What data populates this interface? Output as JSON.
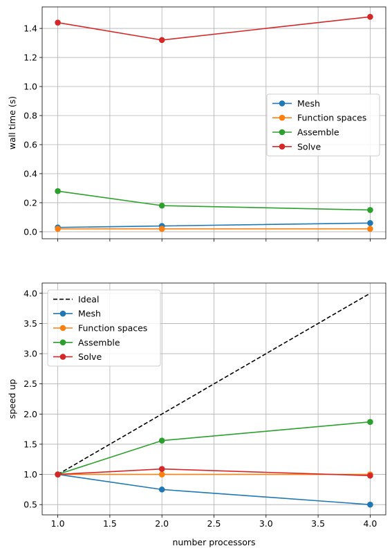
{
  "chart_data": [
    {
      "type": "line",
      "ylabel": "wall time (s)",
      "xlabel": "",
      "x": [
        1,
        2,
        4
      ],
      "xlim": [
        0.85,
        4.15
      ],
      "ylim": [
        -0.048,
        1.548
      ],
      "xticks": [
        1.0,
        1.5,
        2.0,
        2.5,
        3.0,
        3.5,
        4.0
      ],
      "yticks": [
        0.0,
        0.2,
        0.4,
        0.6,
        0.8,
        1.0,
        1.2,
        1.4
      ],
      "ytick_labels": [
        "0.0",
        "0.2",
        "0.4",
        "0.6",
        "0.8",
        "1.0",
        "1.2",
        "1.4"
      ],
      "show_xtick_labels": false,
      "grid": true,
      "legend_position": "center-right",
      "series": [
        {
          "name": "Mesh",
          "color": "#1f77b4",
          "dashed": false,
          "marker": true,
          "values": [
            0.03,
            0.04,
            0.06
          ]
        },
        {
          "name": "Function spaces",
          "color": "#ff7f0e",
          "dashed": false,
          "marker": true,
          "values": [
            0.02,
            0.02,
            0.02
          ]
        },
        {
          "name": "Assemble",
          "color": "#2ca02c",
          "dashed": false,
          "marker": true,
          "values": [
            0.28,
            0.18,
            0.15
          ]
        },
        {
          "name": "Solve",
          "color": "#d62728",
          "dashed": false,
          "marker": true,
          "values": [
            1.44,
            1.32,
            1.48
          ]
        }
      ]
    },
    {
      "type": "line",
      "ylabel": "speed up",
      "xlabel": "number processors",
      "x": [
        1,
        2,
        4
      ],
      "xlim": [
        0.85,
        4.15
      ],
      "ylim": [
        0.33,
        4.17
      ],
      "xticks": [
        1.0,
        1.5,
        2.0,
        2.5,
        3.0,
        3.5,
        4.0
      ],
      "xtick_labels": [
        "1.0",
        "1.5",
        "2.0",
        "2.5",
        "3.0",
        "3.5",
        "4.0"
      ],
      "yticks": [
        0.5,
        1.0,
        1.5,
        2.0,
        2.5,
        3.0,
        3.5,
        4.0
      ],
      "ytick_labels": [
        "0.5",
        "1.0",
        "1.5",
        "2.0",
        "2.5",
        "3.0",
        "3.5",
        "4.0"
      ],
      "show_xtick_labels": true,
      "grid": true,
      "legend_position": "top-left",
      "series": [
        {
          "name": "Ideal",
          "color": "#000000",
          "dashed": true,
          "marker": false,
          "values": [
            1.0,
            2.0,
            4.0
          ]
        },
        {
          "name": "Mesh",
          "color": "#1f77b4",
          "dashed": false,
          "marker": true,
          "values": [
            1.0,
            0.75,
            0.5
          ]
        },
        {
          "name": "Function spaces",
          "color": "#ff7f0e",
          "dashed": false,
          "marker": true,
          "values": [
            1.0,
            1.0,
            1.0
          ]
        },
        {
          "name": "Assemble",
          "color": "#2ca02c",
          "dashed": false,
          "marker": true,
          "values": [
            1.0,
            1.56,
            1.87
          ]
        },
        {
          "name": "Solve",
          "color": "#d62728",
          "dashed": false,
          "marker": true,
          "values": [
            1.0,
            1.09,
            0.98
          ]
        }
      ]
    }
  ]
}
